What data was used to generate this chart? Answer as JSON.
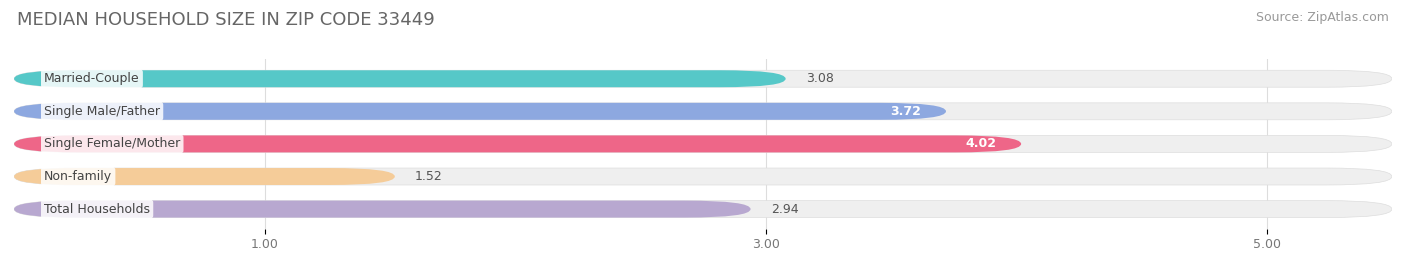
{
  "title": "MEDIAN HOUSEHOLD SIZE IN ZIP CODE 33449",
  "source": "Source: ZipAtlas.com",
  "categories": [
    "Married-Couple",
    "Single Male/Father",
    "Single Female/Mother",
    "Non-family",
    "Total Households"
  ],
  "values": [
    3.08,
    3.72,
    4.02,
    1.52,
    2.94
  ],
  "bar_colors": [
    "#56C8C8",
    "#8DA8E0",
    "#EE6688",
    "#F5CC99",
    "#B8A8D0"
  ],
  "value_labels": [
    "3.08",
    "3.72",
    "4.02",
    "1.52",
    "2.94"
  ],
  "value_inside": [
    false,
    true,
    true,
    false,
    false
  ],
  "xlim_start": 0.0,
  "xlim_end": 5.5,
  "xticks": [
    1.0,
    3.0,
    5.0
  ],
  "xtick_labels": [
    "1.00",
    "3.00",
    "5.00"
  ],
  "title_fontsize": 13,
  "source_fontsize": 9,
  "bar_label_fontsize": 9,
  "value_fontsize": 9,
  "bar_height": 0.52,
  "background_color": "#ffffff",
  "bar_bg_color": "#efefef",
  "grid_color": "#dddddd",
  "label_bg_color": "#ffffff"
}
